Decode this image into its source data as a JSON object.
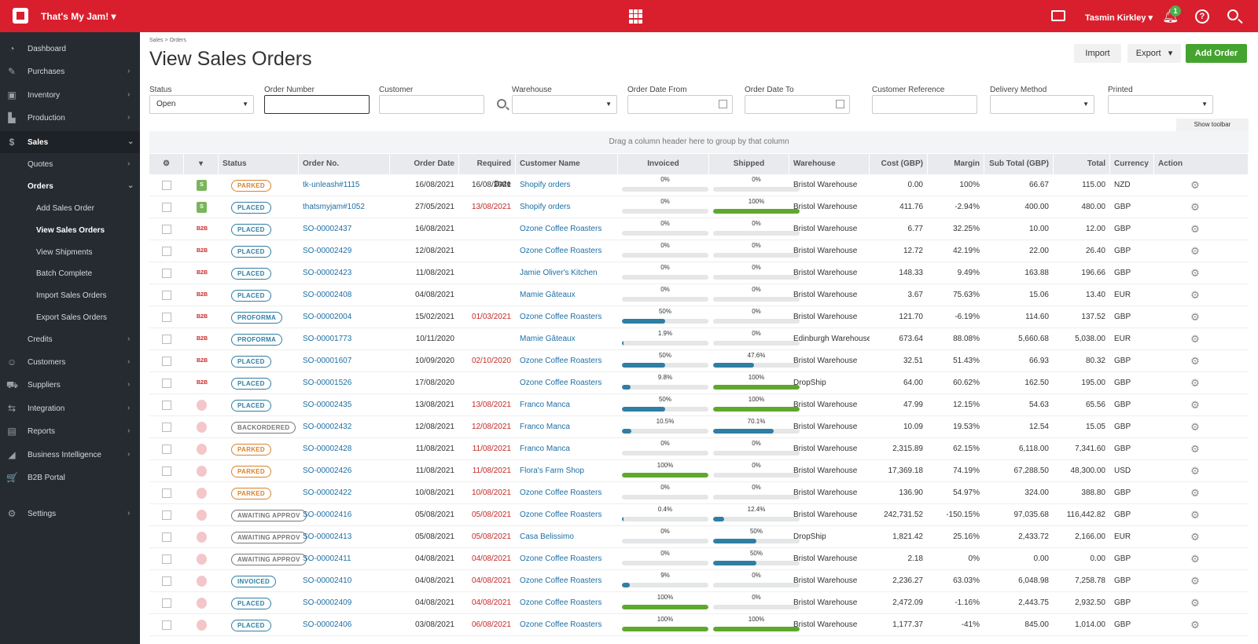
{
  "app": {
    "company": "That's My Jam!",
    "user": "Tasmin Kirkley",
    "notifications": "1"
  },
  "sidebar": [
    {
      "label": "Dashboard",
      "icon": "dashboard-icon",
      "glyph": "◔",
      "chev": ""
    },
    {
      "label": "Purchases",
      "icon": "purchases-icon",
      "glyph": "✎",
      "chev": "›"
    },
    {
      "label": "Inventory",
      "icon": "inventory-icon",
      "glyph": "▣",
      "chev": "›"
    },
    {
      "label": "Production",
      "icon": "production-icon",
      "glyph": "▙",
      "chev": "›"
    },
    {
      "label": "Sales",
      "icon": "sales-icon",
      "glyph": "$",
      "chev": "⌄"
    },
    {
      "label": "Quotes",
      "sub": true,
      "chev": "›"
    },
    {
      "label": "Orders",
      "sub": true,
      "chev": "⌄",
      "bold": true
    },
    {
      "label": "Add Sales Order",
      "sub2": true
    },
    {
      "label": "View Sales Orders",
      "sub2": true,
      "bold": true
    },
    {
      "label": "View Shipments",
      "sub2": true
    },
    {
      "label": "Batch Complete",
      "sub2": true
    },
    {
      "label": "Import Sales Orders",
      "sub2": true
    },
    {
      "label": "Export Sales Orders",
      "sub2": true
    },
    {
      "label": "Credits",
      "sub": true,
      "chev": "›"
    },
    {
      "label": "Customers",
      "icon": "customers-icon",
      "glyph": "☺",
      "chev": "›"
    },
    {
      "label": "Suppliers",
      "icon": "suppliers-icon",
      "glyph": "⛟",
      "chev": "›"
    },
    {
      "label": "Integration",
      "icon": "integration-icon",
      "glyph": "⇆",
      "chev": "›"
    },
    {
      "label": "Reports",
      "icon": "reports-icon",
      "glyph": "▤",
      "chev": "›"
    },
    {
      "label": "Business Intelligence",
      "icon": "bi-icon",
      "glyph": "◢",
      "chev": "›"
    },
    {
      "label": "B2B Portal",
      "icon": "cart-icon",
      "glyph": "🛒",
      "chev": ""
    },
    {
      "label": "Settings",
      "icon": "settings-icon",
      "glyph": "⚙",
      "chev": "›"
    }
  ],
  "breadcrumb": "Sales > Orders",
  "title": "View Sales Orders",
  "buttons": {
    "import": "Import",
    "export": "Export",
    "add": "Add Order",
    "show_toolbar": "Show toolbar"
  },
  "filters": {
    "status_label": "Status",
    "status_value": "Open",
    "order_number_label": "Order Number",
    "customer_label": "Customer",
    "warehouse_label": "Warehouse",
    "date_from_label": "Order Date From",
    "date_to_label": "Order Date To",
    "cust_ref_label": "Customer Reference",
    "delivery_label": "Delivery Method",
    "printed_label": "Printed"
  },
  "group_hint": "Drag a column header here to group by that column",
  "columns": [
    "Status",
    "Order No.",
    "Order Date",
    "Required Date",
    "Customer Name",
    "Invoiced",
    "Shipped",
    "Warehouse",
    "Cost (GBP)",
    "Margin",
    "Sub Total (GBP)",
    "Total",
    "Currency",
    "Action"
  ],
  "colors": {
    "green": "#45a32f",
    "blue": "#2f7ea3",
    "red": "#d91f2e"
  },
  "orders": [
    {
      "channel": "shopify",
      "status": "PARKED",
      "no": "tk-unleash#1115",
      "date": "16/08/2021",
      "req": "16/08/2021",
      "req_late": false,
      "cust": "Shopify orders",
      "inv": "0%",
      "inv_v": 0,
      "shp": "0%",
      "shp_v": 0,
      "wh": "Bristol Warehouse",
      "cost": "0.00",
      "margin": "100%",
      "sub": "66.67",
      "total": "115.00",
      "cur": "NZD"
    },
    {
      "channel": "shopify",
      "status": "PLACED",
      "no": "thatsmyjam#1052",
      "date": "27/05/2021",
      "req": "13/08/2021",
      "req_late": true,
      "cust": "Shopify orders",
      "inv": "0%",
      "inv_v": 0,
      "shp": "100%",
      "shp_v": 100,
      "wh": "Bristol Warehouse",
      "cost": "411.76",
      "margin": "-2.94%",
      "sub": "400.00",
      "total": "480.00",
      "cur": "GBP"
    },
    {
      "channel": "b2b",
      "status": "PLACED",
      "no": "SO-00002437",
      "date": "16/08/2021",
      "req": "",
      "req_late": false,
      "cust": "Ozone Coffee Roasters",
      "inv": "0%",
      "inv_v": 0,
      "shp": "0%",
      "shp_v": 0,
      "wh": "Bristol Warehouse",
      "cost": "6.77",
      "margin": "32.25%",
      "sub": "10.00",
      "total": "12.00",
      "cur": "GBP"
    },
    {
      "channel": "b2b",
      "status": "PLACED",
      "no": "SO-00002429",
      "date": "12/08/2021",
      "req": "",
      "req_late": false,
      "cust": "Ozone Coffee Roasters",
      "inv": "0%",
      "inv_v": 0,
      "shp": "0%",
      "shp_v": 0,
      "wh": "Bristol Warehouse",
      "cost": "12.72",
      "margin": "42.19%",
      "sub": "22.00",
      "total": "26.40",
      "cur": "GBP"
    },
    {
      "channel": "b2b",
      "status": "PLACED",
      "no": "SO-00002423",
      "date": "11/08/2021",
      "req": "",
      "req_late": false,
      "cust": "Jamie Oliver's Kitchen",
      "inv": "0%",
      "inv_v": 0,
      "shp": "0%",
      "shp_v": 0,
      "wh": "Bristol Warehouse",
      "cost": "148.33",
      "margin": "9.49%",
      "sub": "163.88",
      "total": "196.66",
      "cur": "GBP"
    },
    {
      "channel": "b2b",
      "status": "PLACED",
      "no": "SO-00002408",
      "date": "04/08/2021",
      "req": "",
      "req_late": false,
      "cust": "Mamie Gâteaux",
      "inv": "0%",
      "inv_v": 0,
      "shp": "0%",
      "shp_v": 0,
      "wh": "Bristol Warehouse",
      "cost": "3.67",
      "margin": "75.63%",
      "sub": "15.06",
      "total": "13.40",
      "cur": "EUR"
    },
    {
      "channel": "b2b",
      "status": "PROFORMA",
      "no": "SO-00002004",
      "date": "15/02/2021",
      "req": "01/03/2021",
      "req_late": true,
      "cust": "Ozone Coffee Roasters",
      "inv": "50%",
      "inv_v": 50,
      "shp": "0%",
      "shp_v": 0,
      "wh": "Bristol Warehouse",
      "cost": "121.70",
      "margin": "-6.19%",
      "sub": "114.60",
      "total": "137.52",
      "cur": "GBP"
    },
    {
      "channel": "b2b",
      "status": "PROFORMA",
      "no": "SO-00001773",
      "date": "10/11/2020",
      "req": "",
      "req_late": false,
      "cust": "Mamie Gâteaux",
      "inv": "1.9%",
      "inv_v": 1.9,
      "shp": "0%",
      "shp_v": 0,
      "wh": "Edinburgh Warehouse",
      "cost": "673.64",
      "margin": "88.08%",
      "sub": "5,660.68",
      "total": "5,038.00",
      "cur": "EUR"
    },
    {
      "channel": "b2b",
      "status": "PLACED",
      "no": "SO-00001607",
      "date": "10/09/2020",
      "req": "02/10/2020",
      "req_late": true,
      "cust": "Ozone Coffee Roasters",
      "inv": "50%",
      "inv_v": 50,
      "shp": "47.6%",
      "shp_v": 47.6,
      "wh": "Bristol Warehouse",
      "cost": "32.51",
      "margin": "51.43%",
      "sub": "66.93",
      "total": "80.32",
      "cur": "GBP"
    },
    {
      "channel": "b2b",
      "status": "PLACED",
      "no": "SO-00001526",
      "date": "17/08/2020",
      "req": "",
      "req_late": false,
      "cust": "Ozone Coffee Roasters",
      "inv": "9.8%",
      "inv_v": 9.8,
      "shp": "100%",
      "shp_v": 100,
      "wh": "DropShip",
      "cost": "64.00",
      "margin": "60.62%",
      "sub": "162.50",
      "total": "195.00",
      "cur": "GBP"
    },
    {
      "channel": "pos",
      "status": "PLACED",
      "no": "SO-00002435",
      "date": "13/08/2021",
      "req": "13/08/2021",
      "req_late": true,
      "cust": "Franco Manca",
      "inv": "50%",
      "inv_v": 50,
      "shp": "100%",
      "shp_v": 100,
      "wh": "Bristol Warehouse",
      "cost": "47.99",
      "margin": "12.15%",
      "sub": "54.63",
      "total": "65.56",
      "cur": "GBP"
    },
    {
      "channel": "pos",
      "status": "BACKORDERED",
      "no": "SO-00002432",
      "date": "12/08/2021",
      "req": "12/08/2021",
      "req_late": true,
      "cust": "Franco Manca",
      "inv": "10.5%",
      "inv_v": 10.5,
      "shp": "70.1%",
      "shp_v": 70.1,
      "wh": "Bristol Warehouse",
      "cost": "10.09",
      "margin": "19.53%",
      "sub": "12.54",
      "total": "15.05",
      "cur": "GBP"
    },
    {
      "channel": "pos",
      "status": "PARKED",
      "no": "SO-00002428",
      "date": "11/08/2021",
      "req": "11/08/2021",
      "req_late": true,
      "cust": "Franco Manca",
      "inv": "0%",
      "inv_v": 0,
      "shp": "0%",
      "shp_v": 0,
      "wh": "Bristol Warehouse",
      "cost": "2,315.89",
      "margin": "62.15%",
      "sub": "6,118.00",
      "total": "7,341.60",
      "cur": "GBP"
    },
    {
      "channel": "pos",
      "status": "PARKED",
      "no": "SO-00002426",
      "date": "11/08/2021",
      "req": "11/08/2021",
      "req_late": true,
      "cust": "Flora's Farm Shop",
      "inv": "100%",
      "inv_v": 100,
      "shp": "0%",
      "shp_v": 0,
      "wh": "Bristol Warehouse",
      "cost": "17,369.18",
      "margin": "74.19%",
      "sub": "67,288.50",
      "total": "48,300.00",
      "cur": "USD"
    },
    {
      "channel": "pos",
      "status": "PARKED",
      "no": "SO-00002422",
      "date": "10/08/2021",
      "req": "10/08/2021",
      "req_late": true,
      "cust": "Ozone Coffee Roasters",
      "inv": "0%",
      "inv_v": 0,
      "shp": "0%",
      "shp_v": 0,
      "wh": "Bristol Warehouse",
      "cost": "136.90",
      "margin": "54.97%",
      "sub": "324.00",
      "total": "388.80",
      "cur": "GBP"
    },
    {
      "channel": "pos",
      "status": "AWAITING APPROV",
      "no": "SO-00002416",
      "date": "05/08/2021",
      "req": "05/08/2021",
      "req_late": true,
      "cust": "Ozone Coffee Roasters",
      "inv": "0.4%",
      "inv_v": 0.4,
      "shp": "12.4%",
      "shp_v": 12.4,
      "wh": "Bristol Warehouse",
      "cost": "242,731.52",
      "margin": "-150.15%",
      "sub": "97,035.68",
      "total": "116,442.82",
      "cur": "GBP"
    },
    {
      "channel": "pos",
      "status": "AWAITING APPROV",
      "no": "SO-00002413",
      "date": "05/08/2021",
      "req": "05/08/2021",
      "req_late": true,
      "cust": "Casa Belissimo",
      "inv": "0%",
      "inv_v": 0,
      "shp": "50%",
      "shp_v": 50,
      "wh": "DropShip",
      "cost": "1,821.42",
      "margin": "25.16%",
      "sub": "2,433.72",
      "total": "2,166.00",
      "cur": "EUR"
    },
    {
      "channel": "pos",
      "status": "AWAITING APPROV",
      "no": "SO-00002411",
      "date": "04/08/2021",
      "req": "04/08/2021",
      "req_late": true,
      "cust": "Ozone Coffee Roasters",
      "inv": "0%",
      "inv_v": 0,
      "shp": "50%",
      "shp_v": 50,
      "wh": "Bristol Warehouse",
      "cost": "2.18",
      "margin": "0%",
      "sub": "0.00",
      "total": "0.00",
      "cur": "GBP"
    },
    {
      "channel": "pos",
      "status": "INVOICED",
      "no": "SO-00002410",
      "date": "04/08/2021",
      "req": "04/08/2021",
      "req_late": true,
      "cust": "Ozone Coffee Roasters",
      "inv": "9%",
      "inv_v": 9,
      "shp": "0%",
      "shp_v": 0,
      "wh": "Bristol Warehouse",
      "cost": "2,236.27",
      "margin": "63.03%",
      "sub": "6,048.98",
      "total": "7,258.78",
      "cur": "GBP"
    },
    {
      "channel": "pos",
      "status": "PLACED",
      "no": "SO-00002409",
      "date": "04/08/2021",
      "req": "04/08/2021",
      "req_late": true,
      "cust": "Ozone Coffee Roasters",
      "inv": "100%",
      "inv_v": 100,
      "shp": "0%",
      "shp_v": 0,
      "wh": "Bristol Warehouse",
      "cost": "2,472.09",
      "margin": "-1.16%",
      "sub": "2,443.75",
      "total": "2,932.50",
      "cur": "GBP"
    },
    {
      "channel": "pos",
      "status": "PLACED",
      "no": "SO-00002406",
      "date": "03/08/2021",
      "req": "06/08/2021",
      "req_late": true,
      "cust": "Ozone Coffee Roasters",
      "inv": "100%",
      "inv_v": 100,
      "shp": "100%",
      "shp_v": 100,
      "wh": "Bristol Warehouse",
      "cost": "1,177.37",
      "margin": "-41%",
      "sub": "845.00",
      "total": "1,014.00",
      "cur": "GBP"
    }
  ]
}
